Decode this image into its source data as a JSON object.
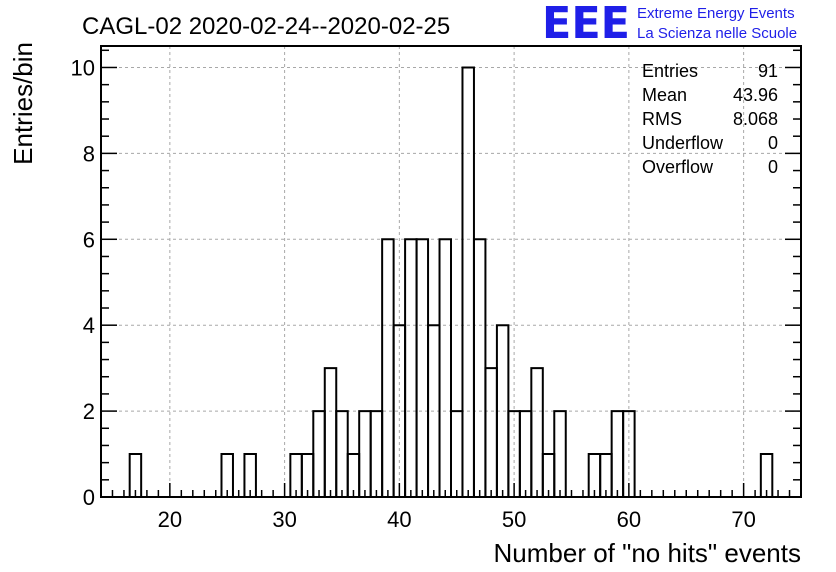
{
  "logo": {
    "mark": "EEE",
    "line1": "Extreme Energy Events",
    "line2": "La Scienza nelle Scuole",
    "color": "#1f1fe8"
  },
  "chart_data": {
    "type": "histogram",
    "title": "CAGL-02 2020-02-24--2020-02-25",
    "xlabel": "Number of \"no hits\" events",
    "ylabel": "Entries/bin",
    "xlim": [
      14,
      75
    ],
    "ylim": [
      0,
      10.5
    ],
    "bin_width": 1,
    "xticks": [
      20,
      30,
      40,
      50,
      60,
      70
    ],
    "yticks": [
      0,
      2,
      4,
      6,
      8,
      10
    ],
    "grid": true,
    "line_color": "#000000",
    "bins": [
      {
        "x": 17,
        "count": 1
      },
      {
        "x": 25,
        "count": 1
      },
      {
        "x": 27,
        "count": 1
      },
      {
        "x": 31,
        "count": 1
      },
      {
        "x": 32,
        "count": 1
      },
      {
        "x": 33,
        "count": 2
      },
      {
        "x": 34,
        "count": 3
      },
      {
        "x": 35,
        "count": 2
      },
      {
        "x": 36,
        "count": 1
      },
      {
        "x": 37,
        "count": 2
      },
      {
        "x": 38,
        "count": 2
      },
      {
        "x": 39,
        "count": 6
      },
      {
        "x": 40,
        "count": 4
      },
      {
        "x": 41,
        "count": 6
      },
      {
        "x": 42,
        "count": 6
      },
      {
        "x": 43,
        "count": 4
      },
      {
        "x": 44,
        "count": 6
      },
      {
        "x": 45,
        "count": 2
      },
      {
        "x": 46,
        "count": 10
      },
      {
        "x": 47,
        "count": 6
      },
      {
        "x": 48,
        "count": 3
      },
      {
        "x": 49,
        "count": 4
      },
      {
        "x": 50,
        "count": 2
      },
      {
        "x": 51,
        "count": 2
      },
      {
        "x": 52,
        "count": 3
      },
      {
        "x": 53,
        "count": 1
      },
      {
        "x": 54,
        "count": 2
      },
      {
        "x": 57,
        "count": 1
      },
      {
        "x": 58,
        "count": 1
      },
      {
        "x": 59,
        "count": 2
      },
      {
        "x": 60,
        "count": 2
      },
      {
        "x": 72,
        "count": 1
      }
    ],
    "stats": [
      {
        "label": "Entries",
        "value": "91"
      },
      {
        "label": "Mean",
        "value": "43.96"
      },
      {
        "label": "RMS",
        "value": "8.068"
      },
      {
        "label": "Underflow",
        "value": "0"
      },
      {
        "label": "Overflow",
        "value": "0"
      }
    ]
  }
}
